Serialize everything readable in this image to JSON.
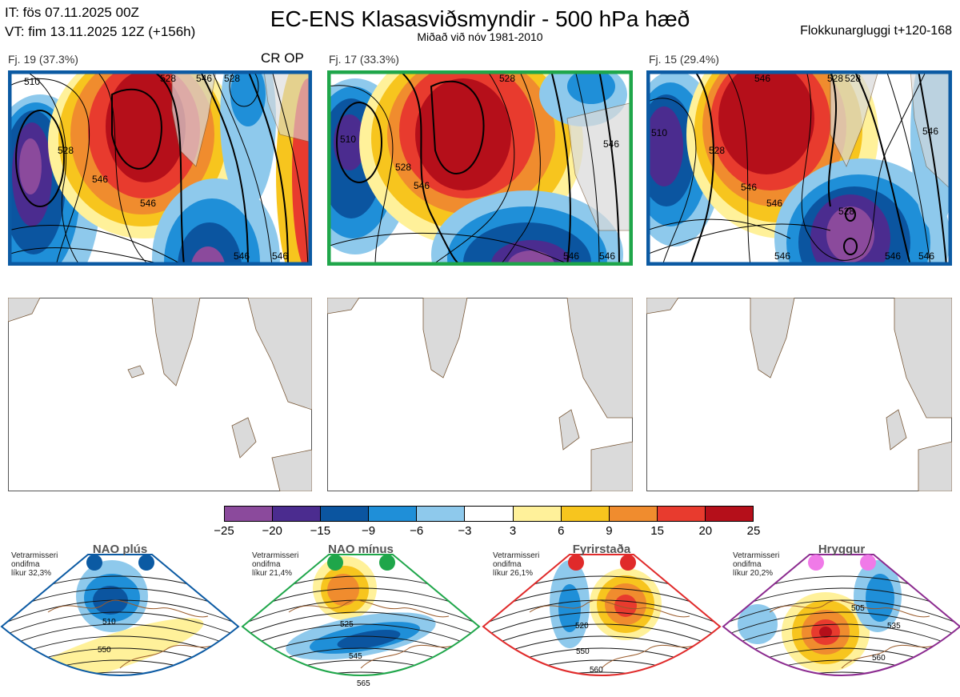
{
  "header": {
    "it_line": "IT: fös 07.11.2025 00Z",
    "vt_line": "VT: fim 13.11.2025 12Z  (+156h)",
    "title": "EC-ENS Klasasviðsmyndir - 500 hPa hæð",
    "subtitle": "Miðað við nóv 1981-2010",
    "window": "Flokkunargluggi t+120-168"
  },
  "clusters": [
    {
      "label": "Fj. 19 (37.3%)",
      "tag": "CR OP",
      "border": "#0b5aa3",
      "contours": [
        "510",
        "528",
        "546",
        "546",
        "528",
        "546",
        "528",
        "546",
        "546"
      ]
    },
    {
      "label": "Fj. 17 (33.3%)",
      "tag": "",
      "border": "#1fa64a",
      "contours": [
        "510",
        "528",
        "546",
        "528",
        "546",
        "546",
        "546"
      ]
    },
    {
      "label": "Fj. 15 (29.4%)",
      "tag": "",
      "border": "#0b5aa3",
      "contours": [
        "510",
        "528",
        "546",
        "528",
        "546",
        "528",
        "546",
        "546",
        "546",
        "528",
        "546",
        "546"
      ]
    }
  ],
  "colorbar": {
    "ticks": [
      "−25",
      "−20",
      "−15",
      "−9",
      "−6",
      "−3",
      "3",
      "6",
      "9",
      "15",
      "20",
      "25"
    ],
    "colors": [
      "#8b4a9c",
      "#4b2c8f",
      "#0b55a0",
      "#1f8fd8",
      "#8ec9ec",
      "#ffffff",
      "#fff19a",
      "#f7c51e",
      "#f08c2e",
      "#e83b2e",
      "#b50f1a"
    ]
  },
  "regimes": [
    {
      "name": "NAO plús",
      "desc": "Vetrarmisseri\nondifma\nlíkur 32,3%",
      "color": "#0b5aa3",
      "dot": "#0b5aa3",
      "contours": [
        "510",
        "550"
      ]
    },
    {
      "name": "NAO mínus",
      "desc": "Vetrarmisseri\nondifma\nlíkur 21,4%",
      "color": "#1fa64a",
      "dot": "#1fa64a",
      "contours": [
        "525",
        "545",
        "565"
      ]
    },
    {
      "name": "Fyrirstaða",
      "desc": "Vetrarmisseri\nondifma\nlíkur 26,1%",
      "color": "#e02a2a",
      "dot": "#e02a2a",
      "contours": [
        "520",
        "550",
        "560"
      ]
    },
    {
      "name": "Hryggur",
      "desc": "Vetrarmisseri\nondifma\nlíkur 20,2%",
      "color": "#8b2a8f",
      "dot": "#f07ae8",
      "contours": [
        "505",
        "535",
        "560"
      ]
    }
  ]
}
